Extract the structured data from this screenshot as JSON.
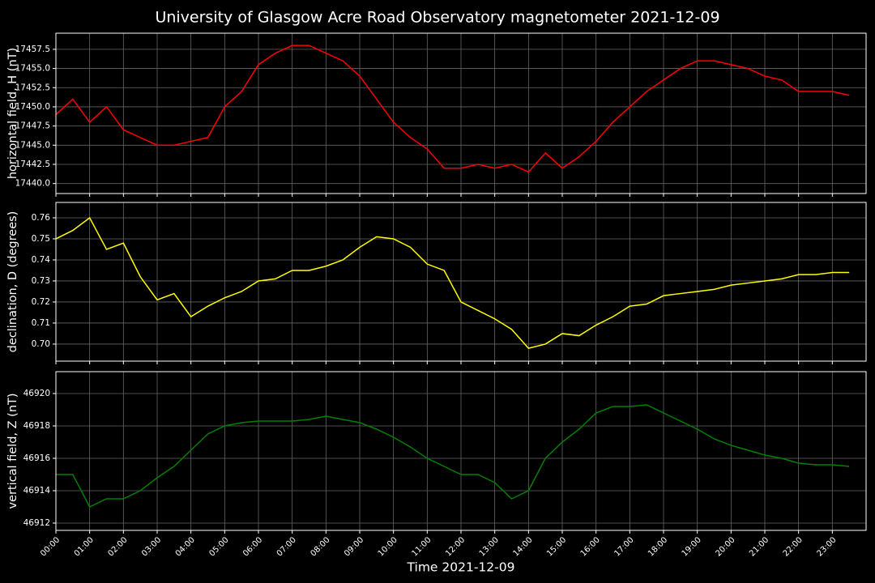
{
  "chart_data": [
    {
      "type": "line",
      "title": "University of Glasgow Acre Road Observatory magnetometer 2021-12-09",
      "ylabel": "horizontal field, H (nT)",
      "color": "#ff0000",
      "grid": true,
      "x": [
        0,
        0.5,
        1,
        1.5,
        2,
        2.5,
        3,
        3.5,
        4,
        4.5,
        5,
        5.5,
        6,
        6.5,
        7,
        7.5,
        8,
        8.5,
        9,
        9.5,
        10,
        10.5,
        11,
        11.5,
        12,
        12.5,
        13,
        13.5,
        14,
        14.5,
        15,
        15.5,
        16,
        16.5,
        17,
        17.5,
        18,
        18.5,
        19,
        19.5,
        20,
        20.5,
        21,
        21.5,
        22,
        22.5,
        23,
        23.5
      ],
      "values": [
        17449,
        17451,
        17448,
        17450,
        17447,
        17446,
        17445,
        17445,
        17445.5,
        17446,
        17450,
        17452,
        17455.5,
        17457,
        17458,
        17458,
        17457,
        17456,
        17454,
        17451,
        17448,
        17446,
        17444.5,
        17442,
        17442,
        17442.5,
        17442,
        17442.5,
        17441.5,
        17444,
        17442,
        17443.5,
        17445.5,
        17448,
        17450,
        17452,
        17453.5,
        17455,
        17456,
        17456,
        17455.5,
        17455,
        17454,
        17453.5,
        17452,
        17452,
        17452,
        17451.5
      ],
      "xlim": [
        0,
        24
      ],
      "xticks": [
        0,
        1,
        2,
        3,
        4,
        5,
        6,
        7,
        8,
        9,
        10,
        11,
        12,
        13,
        14,
        15,
        16,
        17,
        18,
        19,
        20,
        21,
        22,
        23
      ],
      "ylim": [
        17438.7,
        17459.6
      ],
      "yticks": [
        {
          "value": 17440,
          "label": "17440.0"
        },
        17442.5,
        {
          "value": 17445,
          "label": "17445.0"
        },
        17447.5,
        {
          "value": 17450,
          "label": "17450.0"
        },
        17452.5,
        {
          "value": 17455,
          "label": "17455.0"
        },
        17457.5
      ]
    },
    {
      "type": "line",
      "ylabel": "declination, D (degrees)",
      "color": "#ffff00",
      "grid": true,
      "x": [
        0,
        0.5,
        1,
        1.5,
        2,
        2.5,
        3,
        3.5,
        4,
        4.5,
        5,
        5.5,
        6,
        6.5,
        7,
        7.5,
        8,
        8.5,
        9,
        9.5,
        10,
        10.5,
        11,
        11.5,
        12,
        12.5,
        13,
        13.5,
        14,
        14.5,
        15,
        15.5,
        16,
        16.5,
        17,
        17.5,
        18,
        18.5,
        19,
        19.5,
        20,
        20.5,
        21,
        21.5,
        22,
        22.5,
        23,
        23.5
      ],
      "values": [
        0.75,
        0.754,
        0.76,
        0.745,
        0.748,
        0.732,
        0.721,
        0.724,
        0.713,
        0.718,
        0.722,
        0.725,
        0.73,
        0.731,
        0.735,
        0.735,
        0.737,
        0.74,
        0.746,
        0.751,
        0.75,
        0.746,
        0.738,
        0.735,
        0.72,
        0.716,
        0.712,
        0.707,
        0.698,
        0.7,
        0.705,
        0.704,
        0.709,
        0.713,
        0.718,
        0.719,
        0.723,
        0.724,
        0.725,
        0.726,
        0.728,
        0.729,
        0.73,
        0.731,
        0.733,
        0.733,
        0.734,
        0.734
      ],
      "xlim": [
        0,
        24
      ],
      "xticks": [
        0,
        1,
        2,
        3,
        4,
        5,
        6,
        7,
        8,
        9,
        10,
        11,
        12,
        13,
        14,
        15,
        16,
        17,
        18,
        19,
        20,
        21,
        22,
        23
      ],
      "ylim": [
        0.6919,
        0.7673
      ],
      "yticks": [
        {
          "value": 0.7,
          "label": "0.70"
        },
        0.71,
        0.72,
        0.73,
        0.74,
        0.75,
        0.76
      ]
    },
    {
      "type": "line",
      "ylabel": "vertical field, Z (nT)",
      "xlabel": "Time 2021-12-09",
      "color": "#008000",
      "grid": true,
      "x": [
        0,
        0.5,
        1,
        1.5,
        2,
        2.5,
        3,
        3.5,
        4,
        4.5,
        5,
        5.5,
        6,
        6.5,
        7,
        7.5,
        8,
        8.5,
        9,
        9.5,
        10,
        10.5,
        11,
        11.5,
        12,
        12.5,
        13,
        13.5,
        14,
        14.5,
        15,
        15.5,
        16,
        16.5,
        17,
        17.5,
        18,
        18.5,
        19,
        19.5,
        20,
        20.5,
        21,
        21.5,
        22,
        22.5,
        23,
        23.5
      ],
      "values": [
        46915,
        46915,
        46913,
        46913.5,
        46913.5,
        46914,
        46914.8,
        46915.5,
        46916.5,
        46917.5,
        46918,
        46918.2,
        46918.3,
        46918.3,
        46918.3,
        46918.4,
        46918.6,
        46918.4,
        46918.2,
        46917.8,
        46917.3,
        46916.7,
        46916,
        46915.5,
        46915,
        46915,
        46914.5,
        46913.5,
        46914,
        46916,
        46917,
        46917.8,
        46918.8,
        46919.2,
        46919.2,
        46919.3,
        46918.8,
        46918.3,
        46917.8,
        46917.2,
        46916.8,
        46916.5,
        46916.2,
        46916,
        46915.7,
        46915.6,
        46915.6,
        46915.5
      ],
      "xlim": [
        0,
        24
      ],
      "xticks": [
        {
          "value": 0,
          "label": "00:00"
        },
        {
          "value": 1,
          "label": "01:00"
        },
        {
          "value": 2,
          "label": "02:00"
        },
        {
          "value": 3,
          "label": "03:00"
        },
        {
          "value": 4,
          "label": "04:00"
        },
        {
          "value": 5,
          "label": "05:00"
        },
        {
          "value": 6,
          "label": "06:00"
        },
        {
          "value": 7,
          "label": "07:00"
        },
        {
          "value": 8,
          "label": "08:00"
        },
        {
          "value": 9,
          "label": "09:00"
        },
        {
          "value": 10,
          "label": "10:00"
        },
        {
          "value": 11,
          "label": "11:00"
        },
        {
          "value": 12,
          "label": "12:00"
        },
        {
          "value": 13,
          "label": "13:00"
        },
        {
          "value": 14,
          "label": "14:00"
        },
        {
          "value": 15,
          "label": "15:00"
        },
        {
          "value": 16,
          "label": "16:00"
        },
        {
          "value": 17,
          "label": "17:00"
        },
        {
          "value": 18,
          "label": "18:00"
        },
        {
          "value": 19,
          "label": "19:00"
        },
        {
          "value": 20,
          "label": "20:00"
        },
        {
          "value": 21,
          "label": "21:00"
        },
        {
          "value": 22,
          "label": "22:00"
        },
        {
          "value": 23,
          "label": "23:00"
        }
      ],
      "ylim": [
        46911.55,
        46921.35
      ],
      "yticks": [
        46912,
        46914,
        46916,
        46918,
        46920
      ]
    }
  ]
}
